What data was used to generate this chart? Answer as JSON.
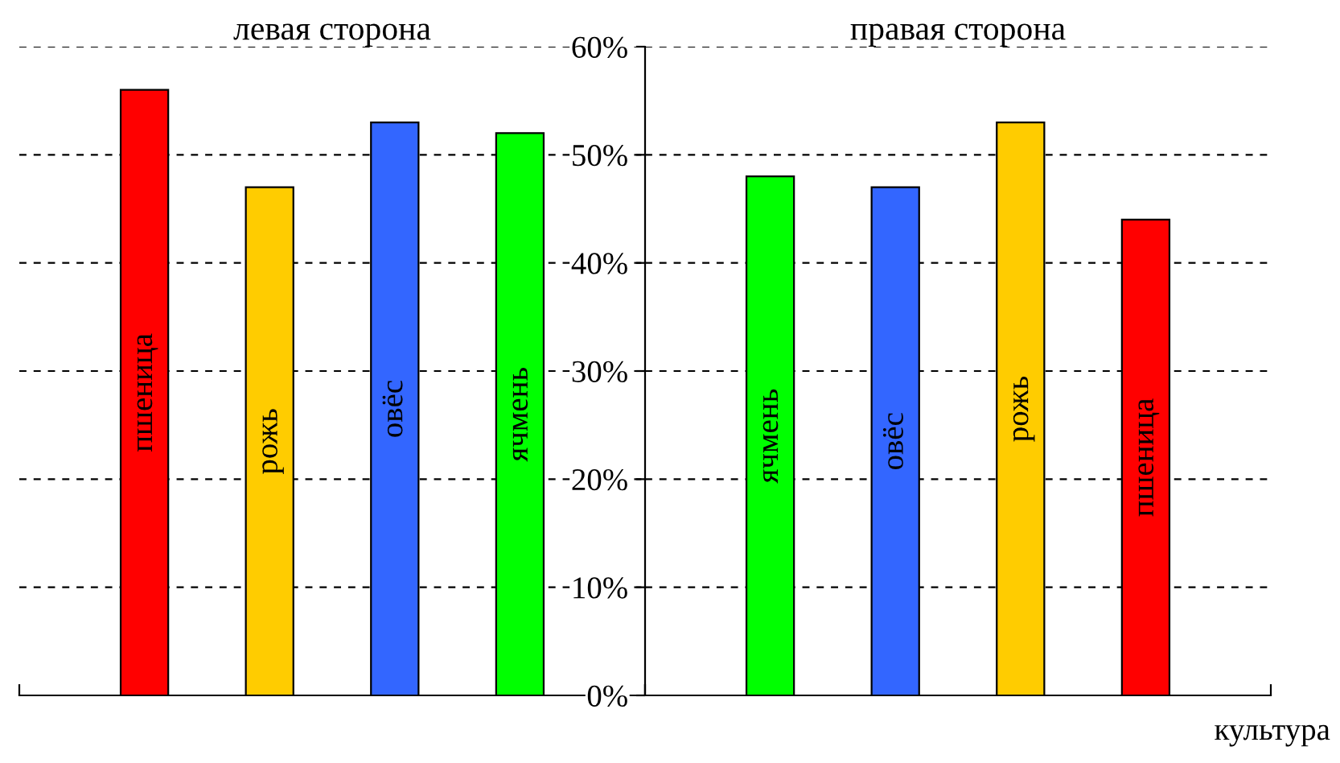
{
  "chart_data": [
    {
      "type": "bar",
      "title": "левая сторона",
      "categories": [
        "пшеница",
        "рожь",
        "овёс",
        "ячмень"
      ],
      "values": [
        56,
        47,
        53,
        52
      ],
      "colors": [
        "#ff0000",
        "#ffcc00",
        "#3366ff",
        "#00ff00"
      ],
      "ylim": [
        0,
        60
      ],
      "yticks": [
        0,
        10,
        20,
        30,
        40,
        50,
        60
      ],
      "grid": "y",
      "tick_labels": false
    },
    {
      "type": "bar",
      "title": "правая сторона",
      "xlabel": "культура",
      "categories": [
        "ячмень",
        "овёс",
        "рожь",
        "пшеница"
      ],
      "values": [
        48,
        47,
        53,
        44
      ],
      "colors": [
        "#00ff00",
        "#3366ff",
        "#ffcc00",
        "#ff0000"
      ],
      "ylim": [
        0,
        60
      ],
      "yticks": [
        {
          "value": 0,
          "label": "0%"
        },
        {
          "value": 10,
          "label": "10%"
        },
        {
          "value": 20,
          "label": "20%"
        },
        {
          "value": 30,
          "label": "30%"
        },
        {
          "value": 40,
          "label": "40%"
        },
        {
          "value": 50,
          "label": "50%"
        },
        {
          "value": 60,
          "label": "60%"
        }
      ],
      "grid": "y",
      "tick_labels": "y"
    }
  ]
}
